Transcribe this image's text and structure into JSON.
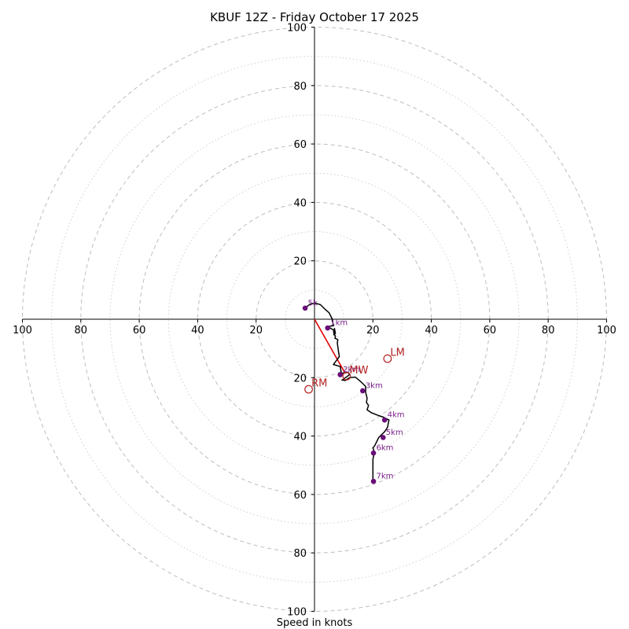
{
  "chart_data": {
    "type": "hodograph",
    "title": "KBUF 12Z - Friday October 17 2025",
    "xlabel": "Speed in knots",
    "range": [
      -100,
      100
    ],
    "ring_major": [
      20,
      40,
      60,
      80,
      100
    ],
    "ring_minor": [
      10,
      30,
      50,
      70,
      90
    ],
    "x_ticks": [
      {
        "value": -100,
        "label": "100"
      },
      {
        "value": -80,
        "label": "80"
      },
      {
        "value": -60,
        "label": "60"
      },
      {
        "value": -40,
        "label": "40"
      },
      {
        "value": -20,
        "label": "20"
      },
      {
        "value": 20,
        "label": "20"
      },
      {
        "value": 40,
        "label": "40"
      },
      {
        "value": 60,
        "label": "60"
      },
      {
        "value": 80,
        "label": "80"
      },
      {
        "value": 100,
        "label": "100"
      }
    ],
    "y_ticks": [
      {
        "value": 100,
        "label": "100"
      },
      {
        "value": 80,
        "label": "80"
      },
      {
        "value": 60,
        "label": "60"
      },
      {
        "value": 40,
        "label": "40"
      },
      {
        "value": 20,
        "label": "20"
      },
      {
        "value": -20,
        "label": "20"
      },
      {
        "value": -40,
        "label": "40"
      },
      {
        "value": -60,
        "label": "60"
      },
      {
        "value": -80,
        "label": "80"
      },
      {
        "value": -100,
        "label": "100"
      }
    ],
    "hodograph": [
      [
        -3.2,
        3.8
      ],
      [
        -1.5,
        5.2
      ],
      [
        0.3,
        5.5
      ],
      [
        2.0,
        5.0
      ],
      [
        3.5,
        3.5
      ],
      [
        5.0,
        2.2
      ],
      [
        6.0,
        0.2
      ],
      [
        6.5,
        -2.2
      ],
      [
        4.5,
        -2.5
      ],
      [
        7.0,
        -4.0
      ],
      [
        6.8,
        -3.0
      ],
      [
        7.2,
        -5.0
      ],
      [
        6.5,
        -3.5
      ],
      [
        7.0,
        -5.5
      ],
      [
        6.5,
        -4.0
      ],
      [
        6.8,
        -5.5
      ],
      [
        6.5,
        -5.0
      ],
      [
        7.2,
        -5.8
      ],
      [
        7.0,
        -6.5
      ],
      [
        8.0,
        -7.0
      ],
      [
        7.8,
        -8.0
      ],
      [
        8.0,
        -9.5
      ],
      [
        8.2,
        -11.0
      ],
      [
        8.5,
        -12.8
      ],
      [
        6.5,
        -15.5
      ],
      [
        8.8,
        -16.2
      ],
      [
        9.2,
        -18.5
      ],
      [
        11.5,
        -18.2
      ],
      [
        12.0,
        -19.0
      ],
      [
        9.5,
        -20.8
      ],
      [
        10.5,
        -21.0
      ],
      [
        12.0,
        -20.0
      ],
      [
        14.0,
        -19.8
      ],
      [
        16.0,
        -21.5
      ],
      [
        17.5,
        -23.0
      ],
      [
        17.5,
        -25.0
      ],
      [
        18.0,
        -27.0
      ],
      [
        17.8,
        -28.5
      ],
      [
        18.5,
        -29.5
      ],
      [
        18.0,
        -31.0
      ],
      [
        19.5,
        -32.0
      ],
      [
        21.5,
        -32.8
      ],
      [
        23.5,
        -33.5
      ],
      [
        25.5,
        -34.5
      ],
      [
        25.2,
        -36.0
      ],
      [
        25.0,
        -37.0
      ],
      [
        24.0,
        -38.5
      ],
      [
        22.0,
        -40.5
      ],
      [
        21.0,
        -42.5
      ],
      [
        20.5,
        -43.5
      ],
      [
        20.0,
        -44.0
      ],
      [
        20.5,
        -45.5
      ],
      [
        20.0,
        -48.0
      ],
      [
        20.0,
        -51.0
      ],
      [
        20.0,
        -54.0
      ],
      [
        20.0,
        -56.0
      ]
    ],
    "km_markers": [
      {
        "label": "5k",
        "u": -3.2,
        "v": 3.8
      },
      {
        "label": "1km",
        "u": 4.5,
        "v": -3.0
      },
      {
        "label": "2km",
        "u": 8.8,
        "v": -19.0
      },
      {
        "label": "3km",
        "u": 16.5,
        "v": -24.5
      },
      {
        "label": "4km",
        "u": 24.0,
        "v": -34.5
      },
      {
        "label": "5km",
        "u": 23.5,
        "v": -40.5
      },
      {
        "label": "6km",
        "u": 20.2,
        "v": -45.8
      },
      {
        "label": "7km",
        "u": 20.2,
        "v": -55.5
      }
    ],
    "shear_vector": {
      "from": [
        0,
        0
      ],
      "to": [
        10.5,
        -18.5
      ]
    },
    "storm_motion": [
      {
        "label": "MW",
        "u": 11.0,
        "v": -19.5
      },
      {
        "label": "LM",
        "u": 25.0,
        "v": -13.5
      },
      {
        "label": "RM",
        "u": -2.0,
        "v": -24.0
      }
    ],
    "colors": {
      "hodograph": "#000000",
      "markers": "#6a0d7a",
      "motion": "#b22222",
      "shear": "#e00000",
      "grid": "#bdbdbd"
    }
  }
}
